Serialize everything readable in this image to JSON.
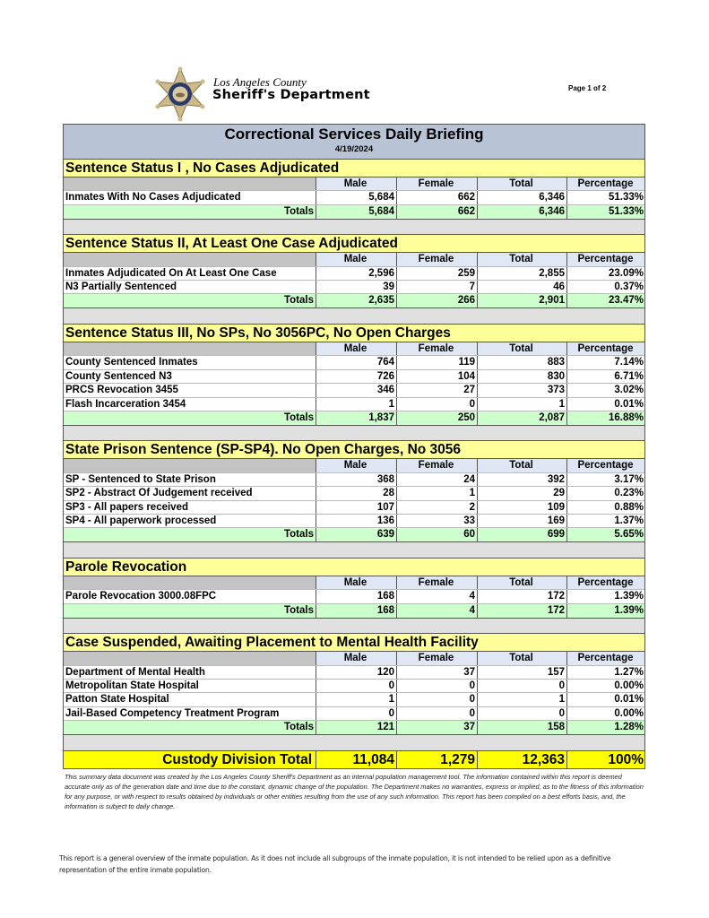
{
  "header": {
    "logo_line1": "Los Angeles County",
    "logo_line2": "Sheriff's Department",
    "page_number": "Page 1 of 2"
  },
  "report": {
    "title": "Correctional Services Daily Briefing",
    "date": "4/19/2024",
    "columns": [
      "Male",
      "Female",
      "Total",
      "Percentage"
    ],
    "totals_label": "Totals",
    "sections": [
      {
        "title": "Sentence Status I , No Cases Adjudicated",
        "rows": [
          {
            "label": "Inmates With No Cases Adjudicated",
            "male": "5,684",
            "female": "662",
            "total": "6,346",
            "pct": "51.33%"
          }
        ],
        "totals": {
          "male": "5,684",
          "female": "662",
          "total": "6,346",
          "pct": "51.33%"
        }
      },
      {
        "title": "Sentence Status II, At Least One Case Adjudicated",
        "rows": [
          {
            "label": "Inmates Adjudicated On At Least One Case",
            "male": "2,596",
            "female": "259",
            "total": "2,855",
            "pct": "23.09%"
          },
          {
            "label": "N3 Partially Sentenced",
            "male": "39",
            "female": "7",
            "total": "46",
            "pct": "0.37%"
          }
        ],
        "totals": {
          "male": "2,635",
          "female": "266",
          "total": "2,901",
          "pct": "23.47%"
        }
      },
      {
        "title": "Sentence Status III, No SPs, No 3056PC, No Open Charges",
        "rows": [
          {
            "label": "County Sentenced Inmates",
            "male": "764",
            "female": "119",
            "total": "883",
            "pct": "7.14%"
          },
          {
            "label": "County Sentenced N3",
            "male": "726",
            "female": "104",
            "total": "830",
            "pct": "6.71%"
          },
          {
            "label": "PRCS Revocation 3455",
            "male": "346",
            "female": "27",
            "total": "373",
            "pct": "3.02%"
          },
          {
            "label": "Flash Incarceration 3454",
            "male": "1",
            "female": "0",
            "total": "1",
            "pct": "0.01%"
          }
        ],
        "totals": {
          "male": "1,837",
          "female": "250",
          "total": "2,087",
          "pct": "16.88%"
        }
      },
      {
        "title": "State Prison Sentence (SP-SP4). No Open Charges, No 3056",
        "rows": [
          {
            "label": "SP - Sentenced to State Prison",
            "male": "368",
            "female": "24",
            "total": "392",
            "pct": "3.17%"
          },
          {
            "label": "SP2 - Abstract Of Judgement received",
            "male": "28",
            "female": "1",
            "total": "29",
            "pct": "0.23%"
          },
          {
            "label": "SP3 - All papers received",
            "male": "107",
            "female": "2",
            "total": "109",
            "pct": "0.88%"
          },
          {
            "label": "SP4 - All paperwork processed",
            "male": "136",
            "female": "33",
            "total": "169",
            "pct": "1.37%"
          }
        ],
        "totals": {
          "male": "639",
          "female": "60",
          "total": "699",
          "pct": "5.65%"
        }
      },
      {
        "title": "Parole Revocation",
        "rows": [
          {
            "label": "Parole Revocation 3000.08FPC",
            "male": "168",
            "female": "4",
            "total": "172",
            "pct": "1.39%"
          }
        ],
        "totals": {
          "male": "168",
          "female": "4",
          "total": "172",
          "pct": "1.39%"
        }
      },
      {
        "title": "Case Suspended, Awaiting Placement to Mental Health Facility",
        "rows": [
          {
            "label": "Department of Mental Health",
            "male": "120",
            "female": "37",
            "total": "157",
            "pct": "1.27%"
          },
          {
            "label": "Metropolitan State Hospital",
            "male": "0",
            "female": "0",
            "total": "0",
            "pct": "0.00%"
          },
          {
            "label": "Patton State Hospital",
            "male": "1",
            "female": "0",
            "total": "1",
            "pct": "0.01%"
          },
          {
            "label": "Jail-Based Competency Treatment Program",
            "male": "0",
            "female": "0",
            "total": "0",
            "pct": "0.00%"
          }
        ],
        "totals": {
          "male": "121",
          "female": "37",
          "total": "158",
          "pct": "1.28%"
        }
      }
    ],
    "grand_total": {
      "label": "Custody Division Total",
      "male": "11,084",
      "female": "1,279",
      "total": "12,363",
      "pct": "100%"
    }
  },
  "disclaimer": "This summary data document was created by the Los Angeles County Sheriff's Department as an internal population management tool.  The information contained within this report is deemed accurate only as of the generation date and time due to the constant, dynamic change of the population.  The Department makes no warranties, express or implied, as to the fitness of this information for any purpose, or with respect to results obtained by individuals or other entities resulting from the use of any such information.  This report has been compiled on a best efforts basis, and, the information is subject to daily change.",
  "footnote": "This report is a general overview of the inmate population.  As it does not include all subgroups of the inmate population, it is not intended to be relied upon as a definitive representation of the entire inmate population.",
  "colors": {
    "title_band": "#b8c4d6",
    "section_header": "#ffff99",
    "totals_row": "#ccffcc",
    "grand_total": "#ffff00",
    "spacer": "#e0e0e0"
  }
}
